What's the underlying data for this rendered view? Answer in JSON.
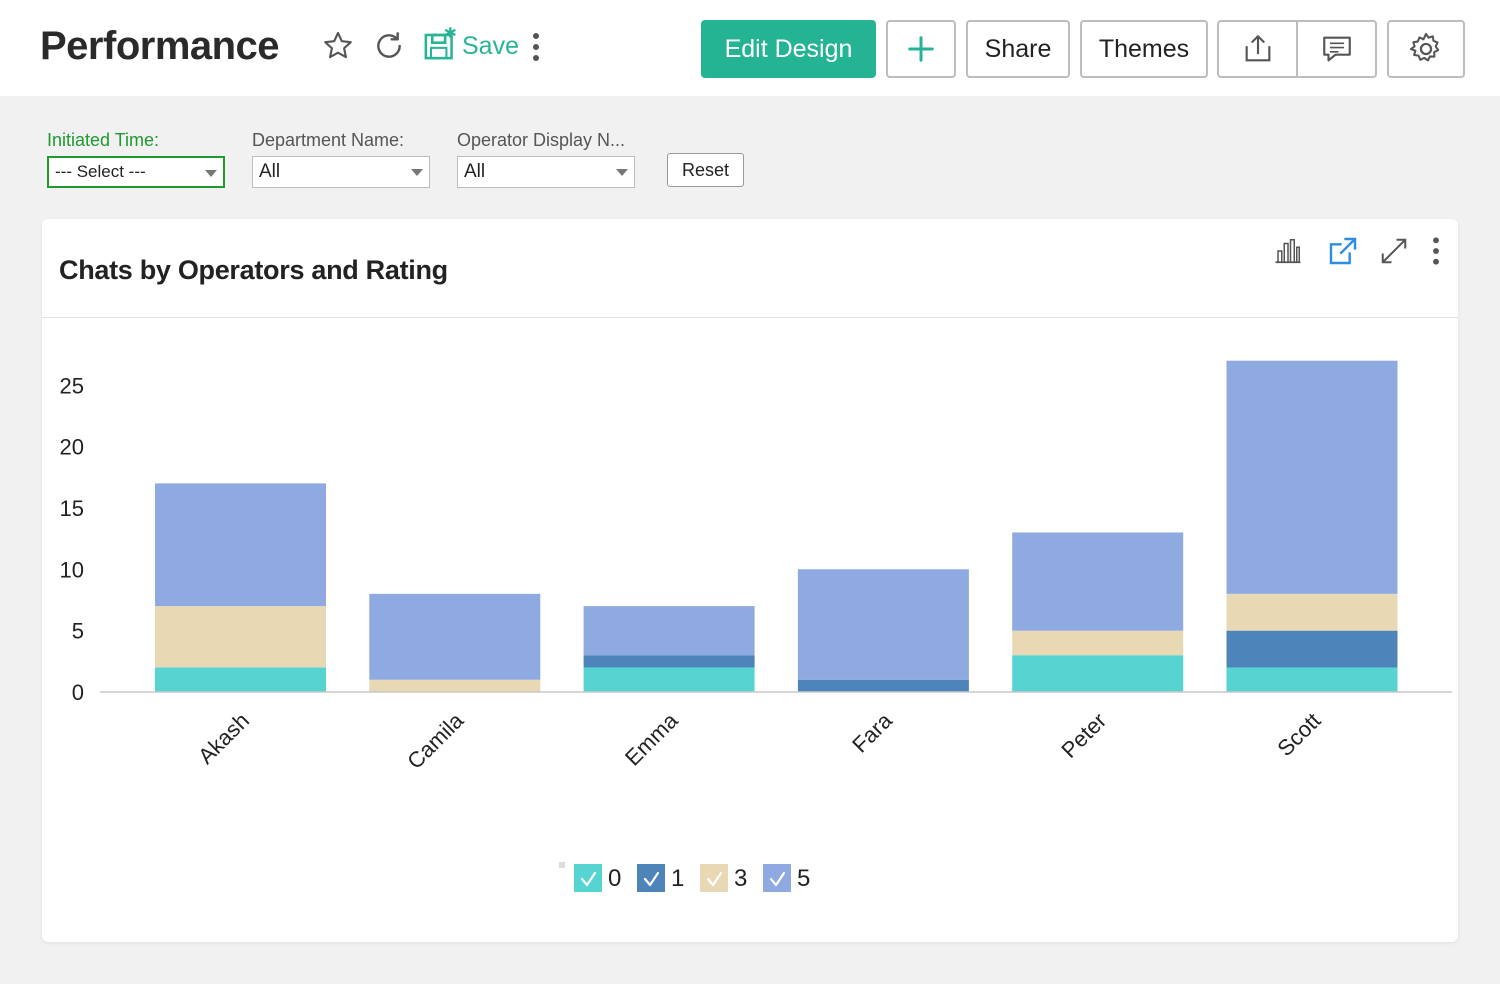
{
  "header": {
    "title": "Performance",
    "save_label": "Save",
    "edit_design_label": "Edit Design",
    "share_label": "Share",
    "themes_label": "Themes",
    "icons": [
      "star-icon",
      "refresh-icon",
      "save-icon",
      "more-vertical-icon",
      "plus-icon",
      "export-icon",
      "comment-icon",
      "settings-icon"
    ]
  },
  "filters": [
    {
      "label": "Initiated Time:",
      "value": "--- Select ---",
      "active": true
    },
    {
      "label": "Department Name:",
      "value": "All",
      "active": false
    },
    {
      "label": "Operator Display N...",
      "value": "All",
      "active": false
    }
  ],
  "reset_label": "Reset",
  "card": {
    "title": "Chats by Operators and Rating",
    "icons": [
      "bar-chart-icon",
      "open-external-icon",
      "expand-icon",
      "more-vertical-icon"
    ]
  },
  "colors": {
    "accent": "#25b493",
    "active_filter": "#1e9a2e",
    "rating_0": "#56d4d2",
    "rating_1": "#4d84b9",
    "rating_3": "#e9d8b4",
    "rating_5": "#8fa9e1"
  },
  "chart_data": {
    "type": "bar",
    "stacked": true,
    "title": "Chats by Operators and Rating",
    "categories": [
      "Akash",
      "Camila",
      "Emma",
      "Fara",
      "Peter",
      "Scott"
    ],
    "series": [
      {
        "name": "0",
        "color": "#56d4d2",
        "values": [
          2,
          0,
          2,
          0,
          3,
          2
        ]
      },
      {
        "name": "1",
        "color": "#4d84b9",
        "values": [
          0,
          0,
          1,
          1,
          0,
          3
        ]
      },
      {
        "name": "3",
        "color": "#e9d8b4",
        "values": [
          5,
          1,
          0,
          0,
          2,
          3
        ]
      },
      {
        "name": "5",
        "color": "#8fa9e1",
        "values": [
          10,
          7,
          4,
          9,
          8,
          19
        ]
      }
    ],
    "yticks": [
      0,
      5,
      10,
      15,
      20,
      25
    ],
    "ylim": [
      0,
      27
    ],
    "xlabel": "",
    "ylabel": "",
    "legend_position": "bottom-center",
    "grid": false
  }
}
